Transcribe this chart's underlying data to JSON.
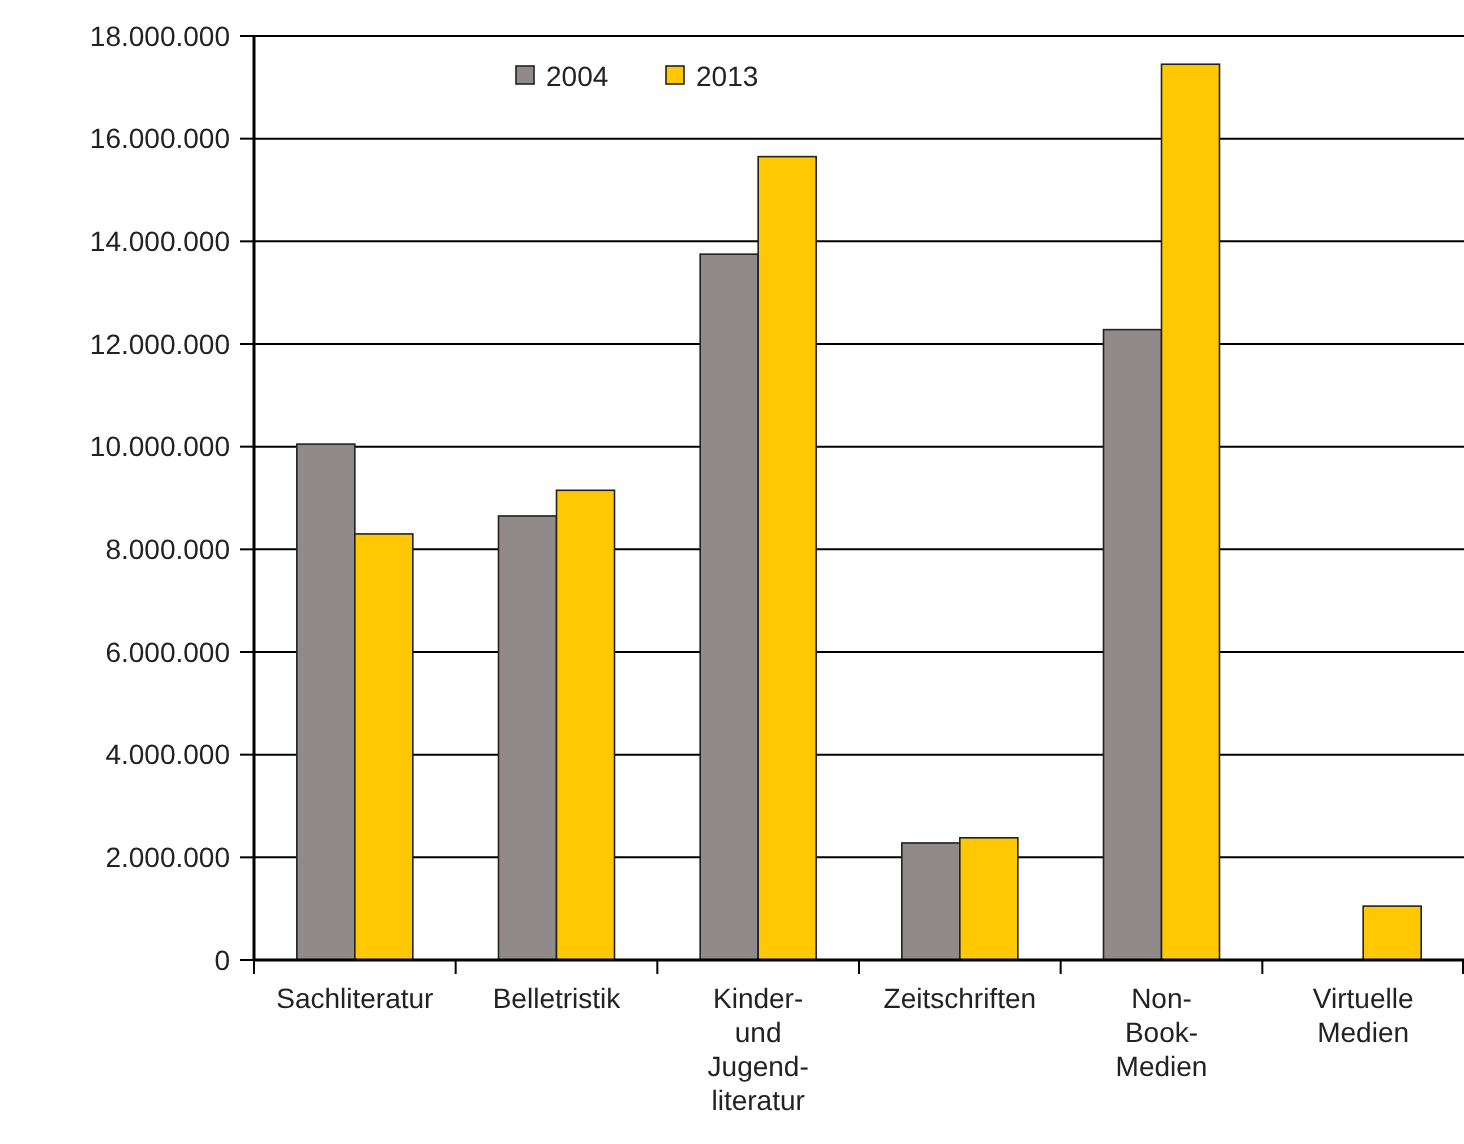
{
  "chart_data": {
    "type": "bar",
    "categories": [
      "Sachliteratur",
      "Belletristik",
      "Kinder-\nund\nJugend-\nliteratur",
      "Zeitschriften",
      "Non-\nBook-\nMedien",
      "Virtuelle\nMedien"
    ],
    "series": [
      {
        "name": "2004",
        "color": "#908a8a",
        "values": [
          10050000,
          8650000,
          13750000,
          2280000,
          12280000,
          null
        ]
      },
      {
        "name": "2013",
        "color": "#ffc800",
        "values": [
          8300000,
          9150000,
          15650000,
          2380000,
          17450000,
          1050000
        ]
      }
    ],
    "ylim": [
      0,
      18000000
    ],
    "yticks": [
      {
        "value": 0,
        "label": "0"
      },
      {
        "value": 2000000,
        "label": "2.000.000"
      },
      {
        "value": 4000000,
        "label": "4.000.000"
      },
      {
        "value": 6000000,
        "label": "6.000.000"
      },
      {
        "value": 8000000,
        "label": "8.000.000"
      },
      {
        "value": 10000000,
        "label": "10.000.000"
      },
      {
        "value": 12000000,
        "label": "12.000.000"
      },
      {
        "value": 14000000,
        "label": "14.000.000"
      },
      {
        "value": 16000000,
        "label": "16.000.000"
      },
      {
        "value": 18000000,
        "label": "18.000.000"
      }
    ],
    "grid": "y",
    "legend": "top"
  }
}
